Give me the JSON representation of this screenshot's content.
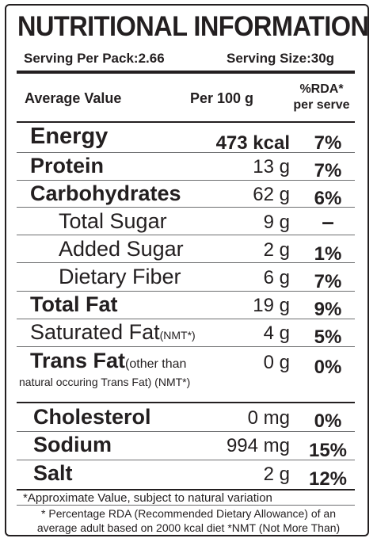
{
  "title": "NUTRITIONAL INFORMATION",
  "serving": {
    "per_pack": "Serving Per Pack:2.66",
    "size": "Serving Size:30g"
  },
  "headers": {
    "average_value": "Average Value",
    "per_100g": "Per 100 g",
    "rda_line1": "%RDA*",
    "rda_line2": "per serve"
  },
  "rows": [
    {
      "name": "Energy",
      "amount": "473 kcal",
      "rda": "7%"
    },
    {
      "name": "Protein",
      "amount": "13 g",
      "rda": "7%"
    },
    {
      "name": "Carbohydrates",
      "amount": "62 g",
      "rda": "6%"
    },
    {
      "name": "Total Sugar",
      "amount": "9 g",
      "rda": "–"
    },
    {
      "name": "Added Sugar",
      "amount": "2 g",
      "rda": "1%"
    },
    {
      "name": "Dietary Fiber",
      "amount": "6 g",
      "rda": "7%"
    },
    {
      "name": "Total Fat",
      "amount": "19 g",
      "rda": "9%"
    },
    {
      "name": "Saturated Fat",
      "note": "(NMT*)",
      "amount": "4 g",
      "rda": "5%"
    },
    {
      "name": "Trans Fat",
      "note": "(other than",
      "note2": "natural occuring Trans Fat) (NMT*)",
      "amount": "0 g",
      "rda": "0%"
    },
    {
      "name": "Cholesterol",
      "amount": "0 mg",
      "rda": "0%"
    },
    {
      "name": "Sodium",
      "amount": "994 mg",
      "rda": "15%"
    },
    {
      "name": "Salt",
      "amount": "2 g",
      "rda": "12%"
    }
  ],
  "footnotes": {
    "approx": "*Approximate Value, subject to natural variation",
    "rda_line1": "* Percentage RDA (Recommended Dietary Allowance) of an",
    "rda_line2": "average adult based on 2000 kcal diet *NMT (Not More Than)"
  }
}
